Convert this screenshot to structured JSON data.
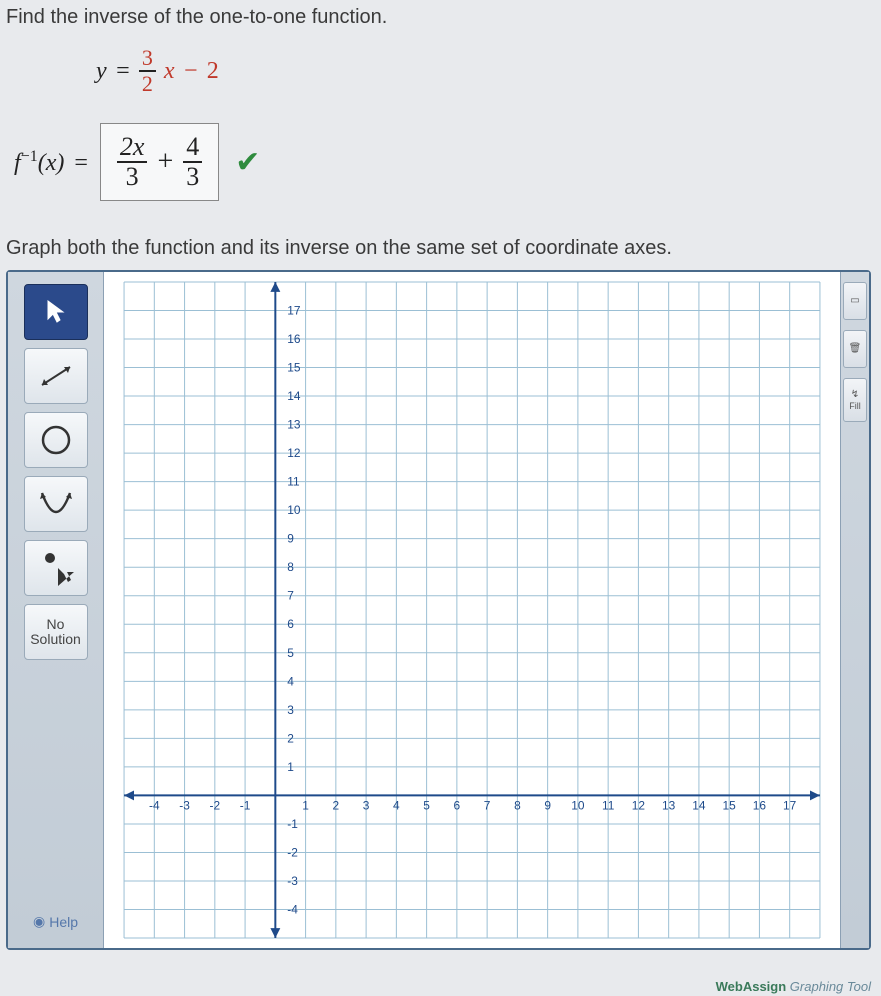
{
  "prompt1": "Find the inverse of the one-to-one function.",
  "equation": {
    "lhs": "y",
    "op1": "=",
    "frac1_num": "3",
    "frac1_den": "2",
    "var": "x",
    "op2": "−",
    "const": "2"
  },
  "answer": {
    "label_f": "f",
    "label_exp": "−1",
    "label_arg": "(x)",
    "label_eq": "=",
    "term1_num": "2x",
    "term1_den": "3",
    "plus": "+",
    "term2_num": "4",
    "term2_den": "3",
    "correct": true
  },
  "prompt2": "Graph both the function and its inverse on the same set of coordinate axes.",
  "toolbar": {
    "tools": [
      {
        "id": "pointer",
        "kind": "cursor",
        "selected": true
      },
      {
        "id": "line",
        "kind": "line",
        "selected": false
      },
      {
        "id": "circle",
        "kind": "circle",
        "selected": false
      },
      {
        "id": "parabola",
        "kind": "parabola",
        "selected": false
      },
      {
        "id": "point",
        "kind": "point",
        "selected": false
      },
      {
        "id": "no-solution",
        "kind": "text",
        "label_line1": "No",
        "label_line2": "Solution",
        "selected": false
      }
    ],
    "help_label": "Help"
  },
  "right_sidebar": {
    "btn1_label": "",
    "btn2_label": "",
    "fill_top": "↯",
    "fill_label": "Fill"
  },
  "graph": {
    "type": "grid",
    "x_min": -5,
    "x_max": 18,
    "y_min": -5,
    "y_max": 18,
    "x_ticks": [
      -4,
      -3,
      -2,
      -1,
      1,
      2,
      3,
      4,
      5,
      6,
      7,
      8,
      9,
      10,
      11,
      12,
      13,
      14,
      15,
      16,
      17
    ],
    "y_ticks": [
      -4,
      -3,
      -2,
      -1,
      1,
      2,
      3,
      4,
      5,
      6,
      7,
      8,
      9,
      10,
      11,
      12,
      13,
      14,
      15,
      16,
      17
    ],
    "grid_color": "#9bbfd4",
    "axis_color": "#1e4a8a",
    "tick_label_color": "#1e4a8a",
    "tick_fontsize": 12,
    "background_color": "#ffffff"
  },
  "footer": {
    "brand_prefix": "WebAssign",
    "brand_suffix": " Graphing Tool"
  }
}
